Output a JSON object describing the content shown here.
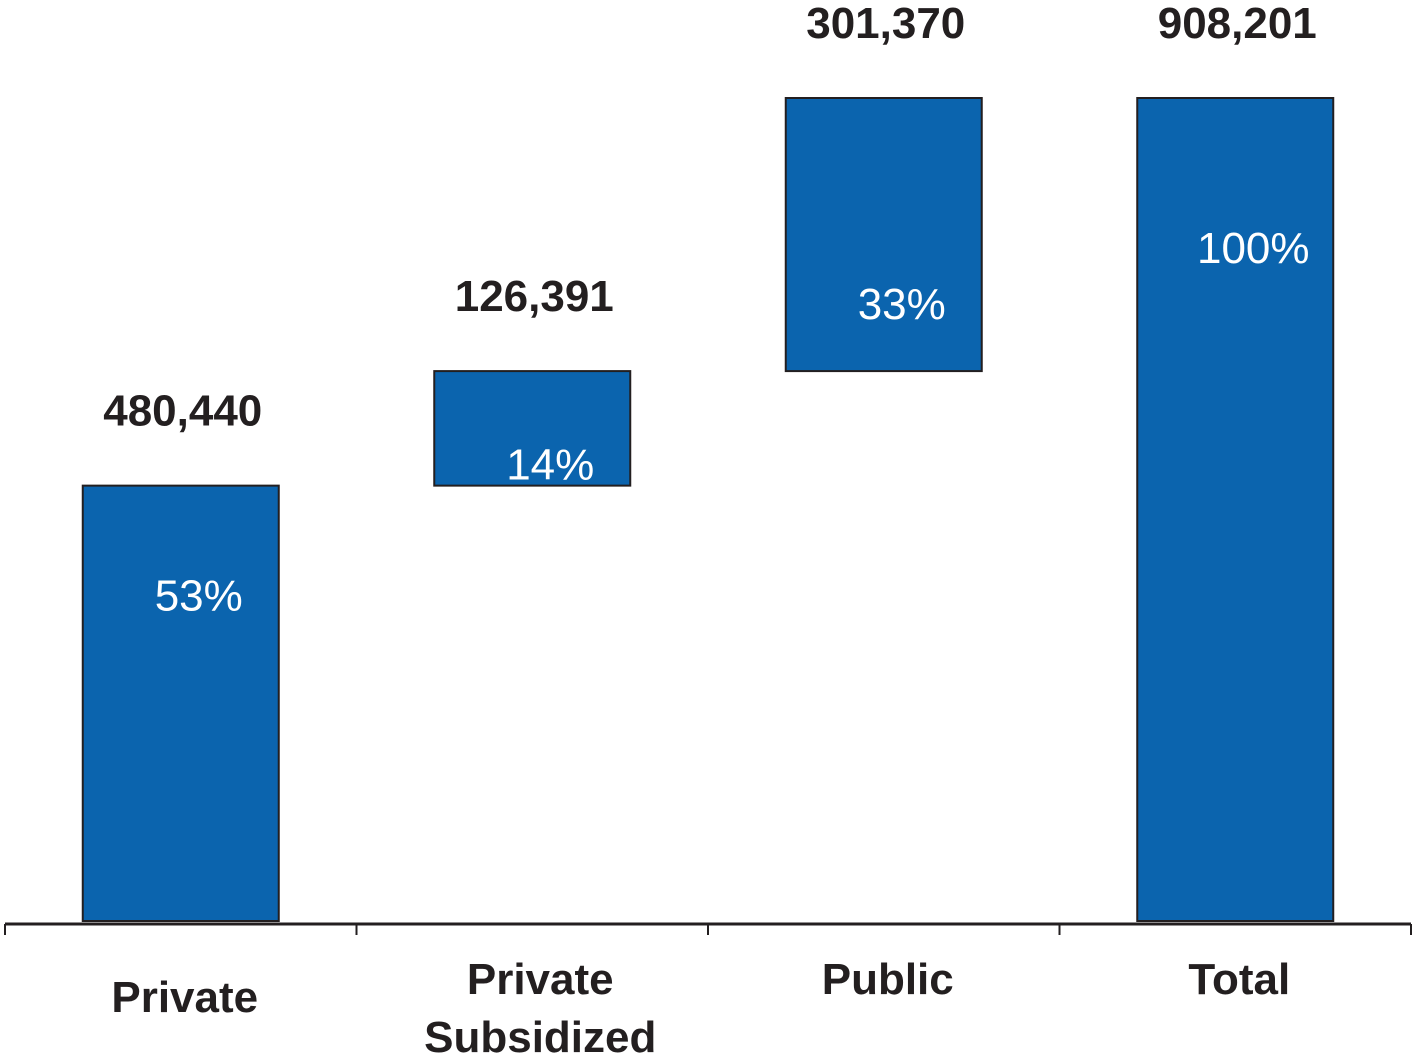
{
  "chart_data": {
    "type": "bar",
    "subtype": "waterfall",
    "title": "",
    "xlabel": "",
    "ylabel": "",
    "categories": [
      {
        "line1": "Private",
        "line2": ""
      },
      {
        "line1": "Private",
        "line2": "Subsidized"
      },
      {
        "line1": "Public",
        "line2": ""
      },
      {
        "line1": "Total",
        "line2": ""
      }
    ],
    "bars": [
      {
        "base": 0,
        "value": 480440,
        "value_label": "480,440",
        "share_label": "53%"
      },
      {
        "base": 480440,
        "value": 126391,
        "value_label": "126,391",
        "share_label": "14%"
      },
      {
        "base": 606831,
        "value": 301370,
        "value_label": "301,370",
        "share_label": "33%"
      },
      {
        "base": 0,
        "value": 908201,
        "value_label": "908,201",
        "share_label": "100%"
      }
    ],
    "ylim": [
      0,
      908201
    ],
    "grid": false,
    "legend": "none",
    "bar_color": "#0b64ae",
    "bar_outline": "#231f20",
    "axis_color": "#231f20"
  }
}
